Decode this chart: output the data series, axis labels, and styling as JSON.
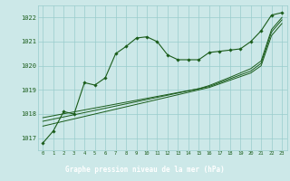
{
  "bg_color": "#cce8e8",
  "plot_bg_color": "#cce8e8",
  "title_bg_color": "#2d6b2d",
  "grid_color": "#99cccc",
  "line_color": "#1a5c1a",
  "marker_color": "#1a5c1a",
  "title": "Graphe pression niveau de la mer (hPa)",
  "xlim": [
    -0.5,
    23.5
  ],
  "ylim": [
    1016.5,
    1022.5
  ],
  "yticks": [
    1017,
    1018,
    1019,
    1020,
    1021,
    1022
  ],
  "xticks": [
    0,
    1,
    2,
    3,
    4,
    5,
    6,
    7,
    8,
    9,
    10,
    11,
    12,
    13,
    14,
    15,
    16,
    17,
    18,
    19,
    20,
    21,
    22,
    23
  ],
  "series_main": [
    1016.8,
    1017.3,
    1018.1,
    1018.0,
    1019.3,
    1019.2,
    1019.5,
    1020.5,
    1020.8,
    1021.15,
    1021.2,
    1021.0,
    1020.45,
    1020.25,
    1020.25,
    1020.25,
    1020.55,
    1020.6,
    1020.65,
    1020.7,
    1021.0,
    1021.45,
    1022.1,
    1022.2
  ],
  "series_linear1": [
    1017.85,
    1017.93,
    1018.01,
    1018.09,
    1018.17,
    1018.25,
    1018.33,
    1018.41,
    1018.49,
    1018.57,
    1018.65,
    1018.73,
    1018.81,
    1018.89,
    1018.97,
    1019.05,
    1019.18,
    1019.35,
    1019.52,
    1019.7,
    1019.88,
    1020.2,
    1021.5,
    1022.0
  ],
  "series_linear2": [
    1017.7,
    1017.79,
    1017.88,
    1017.97,
    1018.06,
    1018.15,
    1018.24,
    1018.33,
    1018.42,
    1018.51,
    1018.6,
    1018.69,
    1018.78,
    1018.87,
    1018.96,
    1019.05,
    1019.14,
    1019.3,
    1019.46,
    1019.62,
    1019.78,
    1020.1,
    1021.4,
    1021.9
  ],
  "series_linear3": [
    1017.5,
    1017.6,
    1017.7,
    1017.8,
    1017.9,
    1018.0,
    1018.1,
    1018.2,
    1018.3,
    1018.4,
    1018.5,
    1018.6,
    1018.7,
    1018.8,
    1018.9,
    1019.0,
    1019.1,
    1019.25,
    1019.4,
    1019.55,
    1019.7,
    1020.0,
    1021.25,
    1021.75
  ]
}
